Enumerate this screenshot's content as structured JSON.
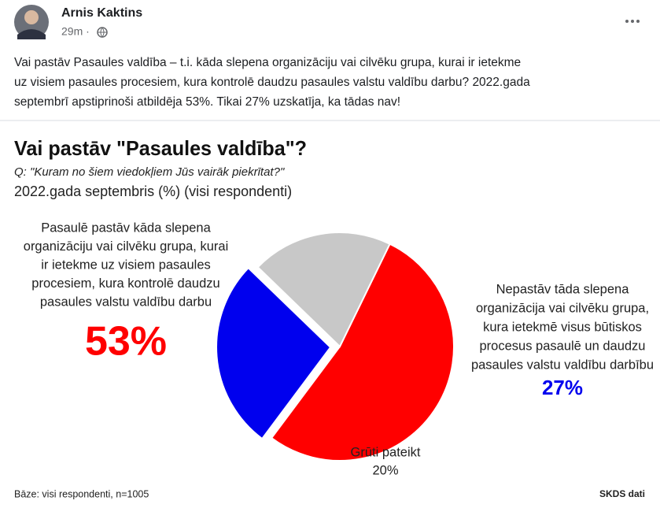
{
  "post": {
    "author": "Arnis Kaktins",
    "time": "29m ·",
    "text_lines": [
      "Vai pastāv Pasaules valdība – t.i. kāda slepena organizāciju vai cilvēku grupa, kurai ir ietekme",
      "uz visiem pasaules procesiem, kura kontrolē daudzu pasaules valstu valdību darbu? 2022.gada",
      "septembrī apstiprinoši atbildēja 53%. Tikai 27% uzskatīja, ka tādas nav!"
    ]
  },
  "chart_data": {
    "type": "pie",
    "title": "Vai pastāv \"Pasaules valdība\"?",
    "subtitle": "Q: \"Kuram no šiem viedokļiem Jūs vairāk piekrītat?\"",
    "subtitle2": "2022.gada septembris (%) (visi respondenti)",
    "labels": [
      [
        "Pasaulē pastāv kāda slepena",
        "organizāciju vai cilvēku grupa, kurai",
        "ir ietekme uz visiem pasaules",
        "procesiem, kura kontrolē daudzu",
        "pasaules valstu valdību darbu"
      ],
      [
        "Nepastāv tāda slepena",
        "organizācija vai cilvēku grupa,",
        "kura ietekmē visus būtiskos",
        "procesus pasaulē un daudzu",
        "pasaules valstu valdību darbību"
      ],
      [
        "Grūti pateikt"
      ]
    ],
    "values": [
      53,
      27,
      20
    ],
    "value_labels": [
      "53%",
      "27%",
      "20%"
    ],
    "colors": [
      "#ff0000",
      "#0000ee",
      "#c8c8c8"
    ],
    "footnote": "Bāze: visi respondenti, n=1005",
    "source": "SKDS dati"
  }
}
